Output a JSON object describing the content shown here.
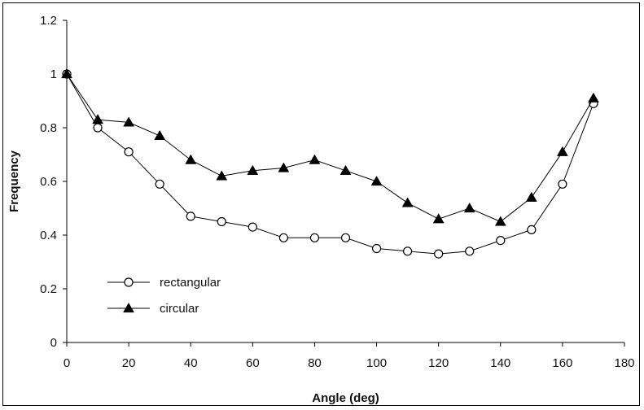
{
  "chart_data": {
    "type": "line",
    "xlabel": "Angle (deg)",
    "ylabel": "Frequency",
    "xlim": [
      0,
      180
    ],
    "ylim": [
      0,
      1.2
    ],
    "xticks": [
      0,
      20,
      40,
      60,
      80,
      100,
      120,
      140,
      160,
      180
    ],
    "yticks": [
      0,
      0.2,
      0.4,
      0.6,
      0.8,
      1,
      1.2
    ],
    "ytick_labels": [
      "0",
      "0.2",
      "0.4",
      "0.6",
      "0.8",
      "1",
      "1.2"
    ],
    "grid": false,
    "legend_position": "lower-left",
    "series": [
      {
        "name": "rectangular",
        "marker": "circle-open",
        "color": "#000000",
        "x": [
          0,
          10,
          20,
          30,
          40,
          50,
          60,
          70,
          80,
          90,
          100,
          110,
          120,
          130,
          140,
          150,
          160,
          170
        ],
        "values": [
          1.0,
          0.8,
          0.71,
          0.59,
          0.47,
          0.45,
          0.43,
          0.39,
          0.39,
          0.39,
          0.35,
          0.34,
          0.33,
          0.34,
          0.38,
          0.42,
          0.59,
          0.89
        ]
      },
      {
        "name": "circular",
        "marker": "triangle-filled",
        "color": "#000000",
        "x": [
          0,
          10,
          20,
          30,
          40,
          50,
          60,
          70,
          80,
          90,
          100,
          110,
          120,
          130,
          140,
          150,
          160,
          170
        ],
        "values": [
          1.0,
          0.83,
          0.82,
          0.77,
          0.68,
          0.62,
          0.64,
          0.65,
          0.68,
          0.64,
          0.6,
          0.52,
          0.46,
          0.5,
          0.45,
          0.54,
          0.71,
          0.91
        ]
      }
    ]
  }
}
